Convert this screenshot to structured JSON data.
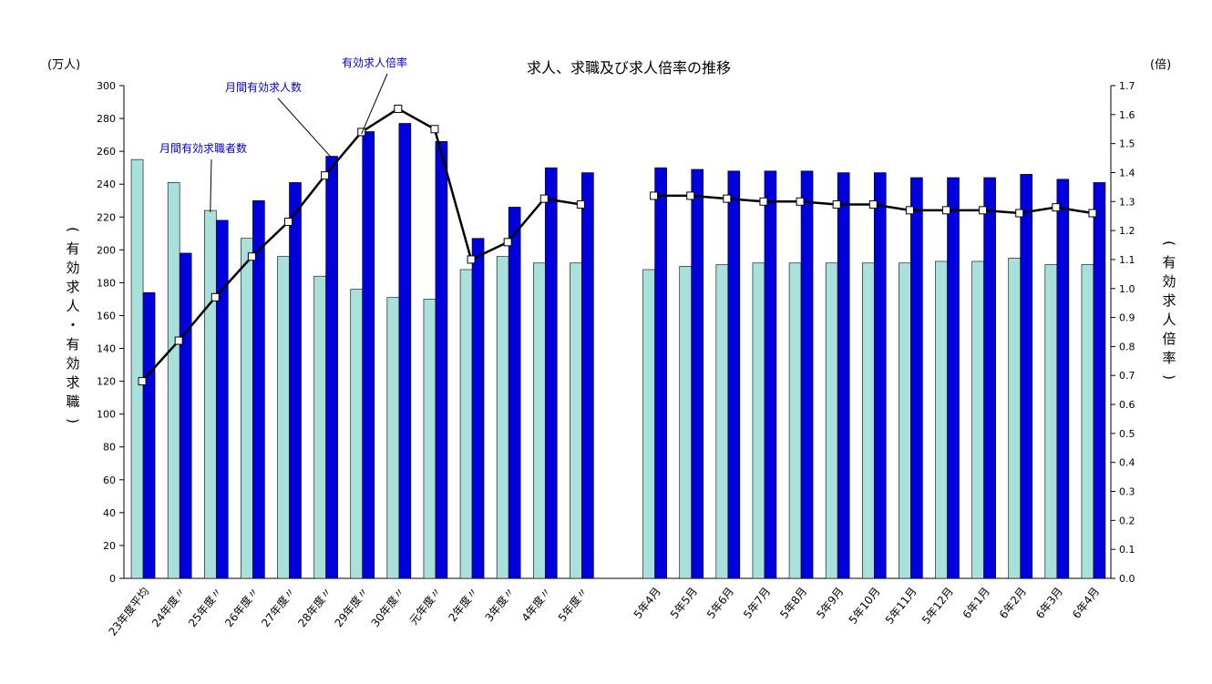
{
  "chart_data": {
    "type": "bar",
    "title": "求人、求職及び求人倍率の推移",
    "left_unit": "(万人)",
    "right_unit": "(倍)",
    "left_axis_label": [
      "(",
      "有",
      "効",
      "求",
      "人",
      "・",
      "有",
      "効",
      "求",
      "職",
      ")"
    ],
    "right_axis_label": [
      "(",
      "有",
      "効",
      "求",
      "人",
      "倍",
      "率",
      ")"
    ],
    "left_ylim": [
      0,
      300
    ],
    "left_ticks": [
      0,
      20,
      40,
      60,
      80,
      100,
      120,
      140,
      160,
      180,
      200,
      220,
      240,
      260,
      280,
      300
    ],
    "right_ylim": [
      0,
      1.7
    ],
    "right_ticks": [
      "0.0",
      "0.1",
      "0.2",
      "0.3",
      "0.4",
      "0.5",
      "0.6",
      "0.7",
      "0.8",
      "0.9",
      "1.0",
      "1.1",
      "1.2",
      "1.3",
      "1.4",
      "1.5",
      "1.6",
      "1.7"
    ],
    "categories": [
      "23年度平均",
      "24年度〃",
      "25年度〃",
      "26年度〃",
      "27年度〃",
      "28年度〃",
      "29年度〃",
      "30年度〃",
      "元年度〃",
      "2年度〃",
      "3年度〃",
      "4年度〃",
      "5年度〃",
      "",
      "5年4月",
      "5年5月",
      "5年6月",
      "5年7月",
      "5年8月",
      "5年9月",
      "5年10月",
      "5年11月",
      "5年12月",
      "6年1月",
      "6年2月",
      "6年3月",
      "6年4月"
    ],
    "series": [
      {
        "name": "月間有効求職者数",
        "color": "#a8e0dc",
        "axis": "left",
        "values": [
          255,
          241,
          224,
          207,
          196,
          184,
          176,
          171,
          170,
          188,
          196,
          192,
          192,
          null,
          188,
          190,
          191,
          192,
          192,
          192,
          192,
          192,
          193,
          193,
          195,
          191,
          191
        ]
      },
      {
        "name": "月間有効求人数",
        "color": "#0000dd",
        "axis": "left",
        "values": [
          174,
          198,
          218,
          230,
          241,
          257,
          272,
          277,
          266,
          207,
          226,
          250,
          247,
          null,
          250,
          249,
          248,
          248,
          248,
          247,
          247,
          244,
          244,
          244,
          246,
          243,
          241
        ]
      },
      {
        "name": "有効求人倍率",
        "color": "#000000",
        "axis": "right",
        "type": "line",
        "values": [
          0.68,
          0.82,
          0.97,
          1.11,
          1.23,
          1.39,
          1.54,
          1.62,
          1.55,
          1.1,
          1.16,
          1.31,
          1.29,
          null,
          1.32,
          1.32,
          1.31,
          1.3,
          1.3,
          1.29,
          1.29,
          1.27,
          1.27,
          1.27,
          1.26,
          1.28,
          1.26
        ]
      }
    ],
    "callouts": [
      {
        "text": "月間有効求職者数",
        "series": 0,
        "index": 2
      },
      {
        "text": "月間有効求人数",
        "series": 1,
        "index": 5
      },
      {
        "text": "有効求人倍率",
        "series": 2,
        "index": 6
      }
    ]
  }
}
